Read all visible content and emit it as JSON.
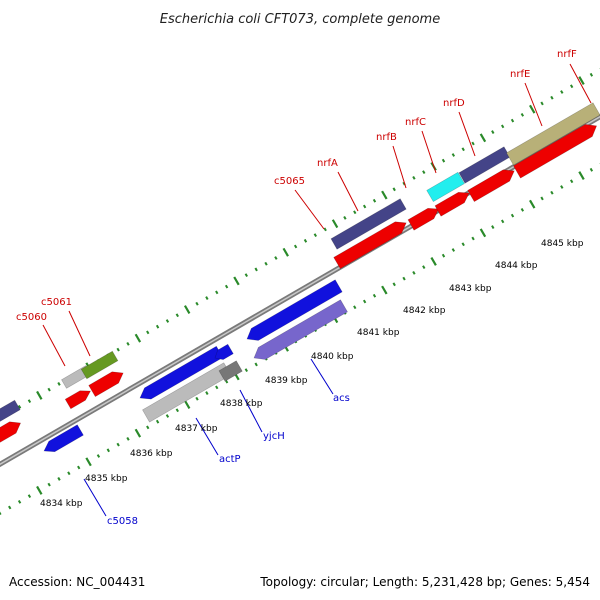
{
  "map": {
    "title": "Escherichia coli CFT073, complete genome",
    "accession": "Accession: NC_004431",
    "topology": "Topology: circular; Length: 5,231,428 bp; Genes: 5,454"
  },
  "scale_labels": [
    "4834 kbp",
    "4835 kbp",
    "4836 kbp",
    "4837 kbp",
    "4838 kbp",
    "4839 kbp",
    "4840 kbp",
    "4841 kbp",
    "4842 kbp",
    "4843 kbp",
    "4844 kbp",
    "4845 kbp"
  ],
  "top_gene_labels": [
    "c5060",
    "c5061",
    "c5065",
    "nrfA",
    "nrfB",
    "nrfC",
    "nrfD",
    "nrfE",
    "nrfF"
  ],
  "bottom_gene_labels": [
    "c5058",
    "actP",
    "yjcH",
    "acs"
  ],
  "colors": {
    "forward_label": "#cc0000",
    "reverse_label": "#0000cc",
    "red_gene": "#ee0000",
    "blue_gene": "#1111dd",
    "navy_gene": "#444488",
    "olive_gene": "#b8b078",
    "green_gene": "#669922",
    "cyan_gene": "#22eeee",
    "lavender_gene": "#7766cc",
    "gray_gene": "#bbbbbb",
    "backbone": "#808080",
    "scale_tick": "#2a8a2a"
  }
}
